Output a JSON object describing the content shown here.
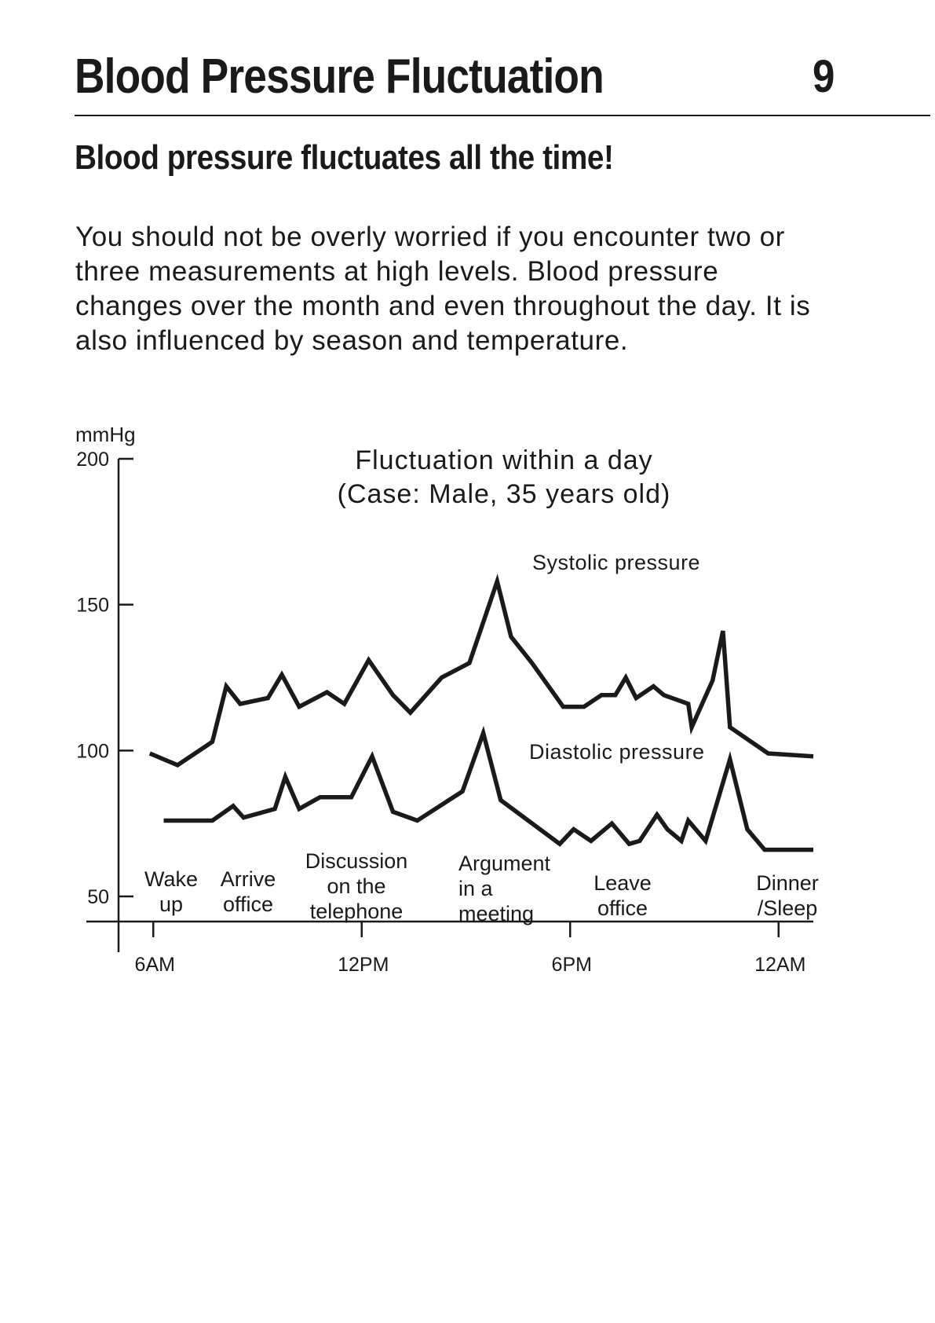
{
  "header": {
    "title": "Blood Pressure Fluctuation",
    "page_number": "9"
  },
  "section_heading": "Blood pressure fluctuates all the time!",
  "paragraph_lines": [
    "You should not be overly worried if you encounter two or",
    "three measurements at high levels. Blood pressure",
    "changes over the month and even throughout the day. It is",
    "also influenced by season and temperature."
  ],
  "chart_data": {
    "type": "line",
    "title": "Fluctuation within a day",
    "subtitle": "(Case: Male, 35 years old)",
    "ylabel": "mmHg",
    "ylim": [
      50,
      200
    ],
    "y_ticks": [
      200,
      150,
      100,
      50
    ],
    "x_ticks": [
      {
        "label": "6AM",
        "hour": 6
      },
      {
        "label": "12PM",
        "hour": 12
      },
      {
        "label": "6PM",
        "hour": 18
      },
      {
        "label": "12AM",
        "hour": 24
      }
    ],
    "xlim_hours": [
      5,
      25
    ],
    "series": [
      {
        "name": "Systolic pressure",
        "points": [
          [
            5.9,
            99
          ],
          [
            6.7,
            95
          ],
          [
            7.7,
            103
          ],
          [
            8.1,
            122
          ],
          [
            8.5,
            116
          ],
          [
            9.3,
            118
          ],
          [
            9.7,
            126
          ],
          [
            10.2,
            115
          ],
          [
            11.0,
            120
          ],
          [
            11.5,
            116
          ],
          [
            12.2,
            131
          ],
          [
            12.9,
            119
          ],
          [
            13.4,
            113
          ],
          [
            14.3,
            125
          ],
          [
            15.1,
            130
          ],
          [
            15.9,
            158
          ],
          [
            16.3,
            139
          ],
          [
            16.9,
            130
          ],
          [
            17.8,
            115
          ],
          [
            18.4,
            115
          ],
          [
            18.9,
            119
          ],
          [
            19.3,
            119
          ],
          [
            19.6,
            125
          ],
          [
            19.9,
            118
          ],
          [
            20.4,
            122
          ],
          [
            20.7,
            119
          ],
          [
            21.4,
            116
          ],
          [
            21.5,
            108
          ],
          [
            22.1,
            124
          ],
          [
            22.4,
            141
          ],
          [
            22.6,
            108
          ],
          [
            23.7,
            99
          ],
          [
            25.0,
            98
          ]
        ]
      },
      {
        "name": "Diastolic pressure",
        "points": [
          [
            6.3,
            76
          ],
          [
            7.7,
            76
          ],
          [
            8.3,
            81
          ],
          [
            8.6,
            77
          ],
          [
            9.5,
            80
          ],
          [
            9.8,
            91
          ],
          [
            10.2,
            80
          ],
          [
            10.8,
            84
          ],
          [
            11.7,
            84
          ],
          [
            12.3,
            98
          ],
          [
            12.9,
            79
          ],
          [
            13.6,
            76
          ],
          [
            14.9,
            86
          ],
          [
            15.5,
            106
          ],
          [
            16.0,
            83
          ],
          [
            17.7,
            68
          ],
          [
            18.1,
            73
          ],
          [
            18.6,
            69
          ],
          [
            19.2,
            75
          ],
          [
            19.7,
            68
          ],
          [
            20.0,
            69
          ],
          [
            20.5,
            78
          ],
          [
            20.8,
            73
          ],
          [
            21.2,
            69
          ],
          [
            21.4,
            76
          ],
          [
            21.9,
            69
          ],
          [
            22.6,
            97
          ],
          [
            23.1,
            73
          ],
          [
            23.6,
            66
          ],
          [
            25.0,
            66
          ]
        ]
      }
    ],
    "events": [
      {
        "lines": [
          "Wake",
          "up"
        ],
        "anchor": "middle"
      },
      {
        "lines": [
          "Arrive",
          "office"
        ],
        "anchor": "middle"
      },
      {
        "lines": [
          "Discussion",
          "on  the",
          "telephone"
        ],
        "anchor": "middle"
      },
      {
        "lines": [
          "Argument",
          "in  a",
          "meeting"
        ],
        "anchor": "start"
      },
      {
        "lines": [
          "Leave",
          "office"
        ],
        "anchor": "middle"
      },
      {
        "lines": [
          "Dinner",
          "/Sleep"
        ],
        "anchor": "middle"
      }
    ]
  }
}
